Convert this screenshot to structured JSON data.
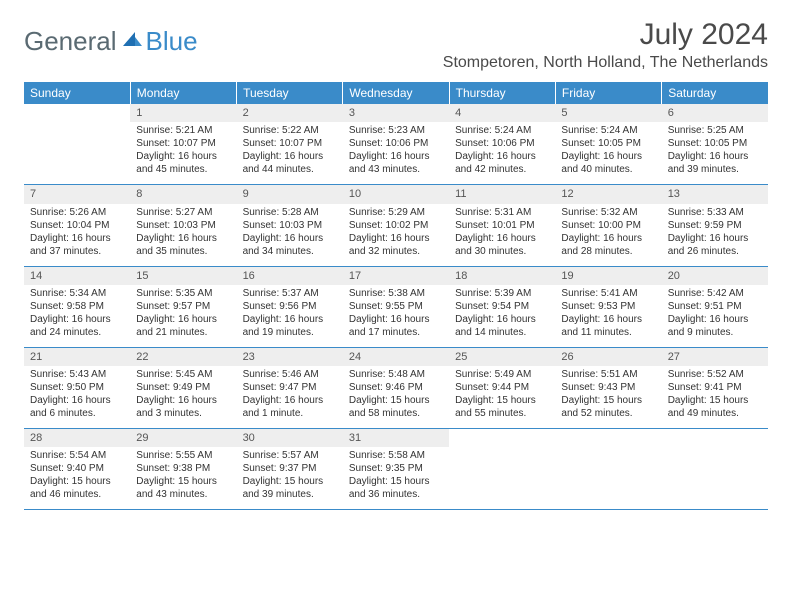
{
  "logo": {
    "text1": "General",
    "text2": "Blue"
  },
  "title": "July 2024",
  "location": "Stompetoren, North Holland, The Netherlands",
  "colors": {
    "header_bg": "#3a8bc9",
    "header_text": "#ffffff",
    "daynum_bg": "#eeeeee",
    "border": "#3a8bc9",
    "logo_gray": "#5a6a72",
    "logo_blue": "#3a8bc9"
  },
  "weekdays": [
    "Sunday",
    "Monday",
    "Tuesday",
    "Wednesday",
    "Thursday",
    "Friday",
    "Saturday"
  ],
  "weeks": [
    [
      {
        "empty": true
      },
      {
        "n": "1",
        "l1": "Sunrise: 5:21 AM",
        "l2": "Sunset: 10:07 PM",
        "l3": "Daylight: 16 hours",
        "l4": "and 45 minutes."
      },
      {
        "n": "2",
        "l1": "Sunrise: 5:22 AM",
        "l2": "Sunset: 10:07 PM",
        "l3": "Daylight: 16 hours",
        "l4": "and 44 minutes."
      },
      {
        "n": "3",
        "l1": "Sunrise: 5:23 AM",
        "l2": "Sunset: 10:06 PM",
        "l3": "Daylight: 16 hours",
        "l4": "and 43 minutes."
      },
      {
        "n": "4",
        "l1": "Sunrise: 5:24 AM",
        "l2": "Sunset: 10:06 PM",
        "l3": "Daylight: 16 hours",
        "l4": "and 42 minutes."
      },
      {
        "n": "5",
        "l1": "Sunrise: 5:24 AM",
        "l2": "Sunset: 10:05 PM",
        "l3": "Daylight: 16 hours",
        "l4": "and 40 minutes."
      },
      {
        "n": "6",
        "l1": "Sunrise: 5:25 AM",
        "l2": "Sunset: 10:05 PM",
        "l3": "Daylight: 16 hours",
        "l4": "and 39 minutes."
      }
    ],
    [
      {
        "n": "7",
        "l1": "Sunrise: 5:26 AM",
        "l2": "Sunset: 10:04 PM",
        "l3": "Daylight: 16 hours",
        "l4": "and 37 minutes."
      },
      {
        "n": "8",
        "l1": "Sunrise: 5:27 AM",
        "l2": "Sunset: 10:03 PM",
        "l3": "Daylight: 16 hours",
        "l4": "and 35 minutes."
      },
      {
        "n": "9",
        "l1": "Sunrise: 5:28 AM",
        "l2": "Sunset: 10:03 PM",
        "l3": "Daylight: 16 hours",
        "l4": "and 34 minutes."
      },
      {
        "n": "10",
        "l1": "Sunrise: 5:29 AM",
        "l2": "Sunset: 10:02 PM",
        "l3": "Daylight: 16 hours",
        "l4": "and 32 minutes."
      },
      {
        "n": "11",
        "l1": "Sunrise: 5:31 AM",
        "l2": "Sunset: 10:01 PM",
        "l3": "Daylight: 16 hours",
        "l4": "and 30 minutes."
      },
      {
        "n": "12",
        "l1": "Sunrise: 5:32 AM",
        "l2": "Sunset: 10:00 PM",
        "l3": "Daylight: 16 hours",
        "l4": "and 28 minutes."
      },
      {
        "n": "13",
        "l1": "Sunrise: 5:33 AM",
        "l2": "Sunset: 9:59 PM",
        "l3": "Daylight: 16 hours",
        "l4": "and 26 minutes."
      }
    ],
    [
      {
        "n": "14",
        "l1": "Sunrise: 5:34 AM",
        "l2": "Sunset: 9:58 PM",
        "l3": "Daylight: 16 hours",
        "l4": "and 24 minutes."
      },
      {
        "n": "15",
        "l1": "Sunrise: 5:35 AM",
        "l2": "Sunset: 9:57 PM",
        "l3": "Daylight: 16 hours",
        "l4": "and 21 minutes."
      },
      {
        "n": "16",
        "l1": "Sunrise: 5:37 AM",
        "l2": "Sunset: 9:56 PM",
        "l3": "Daylight: 16 hours",
        "l4": "and 19 minutes."
      },
      {
        "n": "17",
        "l1": "Sunrise: 5:38 AM",
        "l2": "Sunset: 9:55 PM",
        "l3": "Daylight: 16 hours",
        "l4": "and 17 minutes."
      },
      {
        "n": "18",
        "l1": "Sunrise: 5:39 AM",
        "l2": "Sunset: 9:54 PM",
        "l3": "Daylight: 16 hours",
        "l4": "and 14 minutes."
      },
      {
        "n": "19",
        "l1": "Sunrise: 5:41 AM",
        "l2": "Sunset: 9:53 PM",
        "l3": "Daylight: 16 hours",
        "l4": "and 11 minutes."
      },
      {
        "n": "20",
        "l1": "Sunrise: 5:42 AM",
        "l2": "Sunset: 9:51 PM",
        "l3": "Daylight: 16 hours",
        "l4": "and 9 minutes."
      }
    ],
    [
      {
        "n": "21",
        "l1": "Sunrise: 5:43 AM",
        "l2": "Sunset: 9:50 PM",
        "l3": "Daylight: 16 hours",
        "l4": "and 6 minutes."
      },
      {
        "n": "22",
        "l1": "Sunrise: 5:45 AM",
        "l2": "Sunset: 9:49 PM",
        "l3": "Daylight: 16 hours",
        "l4": "and 3 minutes."
      },
      {
        "n": "23",
        "l1": "Sunrise: 5:46 AM",
        "l2": "Sunset: 9:47 PM",
        "l3": "Daylight: 16 hours",
        "l4": "and 1 minute."
      },
      {
        "n": "24",
        "l1": "Sunrise: 5:48 AM",
        "l2": "Sunset: 9:46 PM",
        "l3": "Daylight: 15 hours",
        "l4": "and 58 minutes."
      },
      {
        "n": "25",
        "l1": "Sunrise: 5:49 AM",
        "l2": "Sunset: 9:44 PM",
        "l3": "Daylight: 15 hours",
        "l4": "and 55 minutes."
      },
      {
        "n": "26",
        "l1": "Sunrise: 5:51 AM",
        "l2": "Sunset: 9:43 PM",
        "l3": "Daylight: 15 hours",
        "l4": "and 52 minutes."
      },
      {
        "n": "27",
        "l1": "Sunrise: 5:52 AM",
        "l2": "Sunset: 9:41 PM",
        "l3": "Daylight: 15 hours",
        "l4": "and 49 minutes."
      }
    ],
    [
      {
        "n": "28",
        "l1": "Sunrise: 5:54 AM",
        "l2": "Sunset: 9:40 PM",
        "l3": "Daylight: 15 hours",
        "l4": "and 46 minutes."
      },
      {
        "n": "29",
        "l1": "Sunrise: 5:55 AM",
        "l2": "Sunset: 9:38 PM",
        "l3": "Daylight: 15 hours",
        "l4": "and 43 minutes."
      },
      {
        "n": "30",
        "l1": "Sunrise: 5:57 AM",
        "l2": "Sunset: 9:37 PM",
        "l3": "Daylight: 15 hours",
        "l4": "and 39 minutes."
      },
      {
        "n": "31",
        "l1": "Sunrise: 5:58 AM",
        "l2": "Sunset: 9:35 PM",
        "l3": "Daylight: 15 hours",
        "l4": "and 36 minutes."
      },
      {
        "empty": true
      },
      {
        "empty": true
      },
      {
        "empty": true
      }
    ]
  ]
}
